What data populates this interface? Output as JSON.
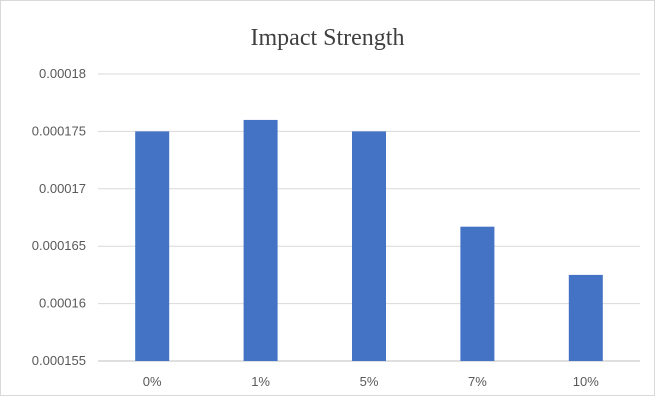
{
  "chart_data": {
    "type": "bar",
    "title": "Impact Strength",
    "xlabel": "",
    "ylabel": "",
    "categories": [
      "0%",
      "1%",
      "5%",
      "7%",
      "10%"
    ],
    "values": [
      0.000175,
      0.000176,
      0.000175,
      0.0001667,
      0.0001625
    ],
    "ylim": [
      0.000155,
      0.00018
    ],
    "yticks": [
      "0.000155",
      "0.00016",
      "0.000165",
      "0.00017",
      "0.000175",
      "0.00018"
    ],
    "grid": true,
    "legend": "none",
    "colors": {
      "bar": "#4472c4",
      "grid": "#d9d9d9",
      "axis": "#bfbfbf"
    }
  }
}
